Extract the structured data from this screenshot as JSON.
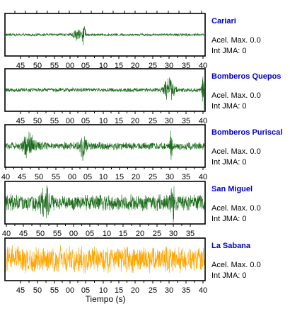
{
  "chart_data": {
    "type": "line",
    "xlabel": "Tiempo (s)",
    "acel_label": "Acel. Max.",
    "int_label": "Int JMA:",
    "panels": [
      {
        "station": "Cariari",
        "acel_max": "0.0",
        "int_jma": "0",
        "trace_color": "#1a6b1a",
        "name_color": "#0000cc",
        "tick_labels": [
          "45",
          "50",
          "55",
          "00",
          "05",
          "10",
          "15",
          "20",
          "25",
          "30",
          "35",
          "40"
        ],
        "noise_level": 0.08,
        "events": [
          {
            "at": 0.395,
            "amp": 1.0,
            "width": 0.006
          },
          {
            "at": 0.36,
            "amp": 0.25,
            "width": 0.02
          }
        ]
      },
      {
        "station": "Bomberos Quepos",
        "acel_max": "0.0",
        "int_jma": "0",
        "trace_color": "#1a6b1a",
        "name_color": "#0000cc",
        "tick_labels": [
          "45",
          "50",
          "55",
          "00",
          "05",
          "10",
          "15",
          "20",
          "25",
          "30",
          "35",
          "40"
        ],
        "noise_level": 0.12,
        "events": [
          {
            "at": 0.82,
            "amp": 0.55,
            "width": 0.025
          },
          {
            "at": 0.995,
            "amp": 1.0,
            "width": 0.01
          }
        ]
      },
      {
        "station": "Bomberos Puriscal",
        "acel_max": "0.0",
        "int_jma": "0",
        "trace_color": "#1a6b1a",
        "name_color": "#0000cc",
        "tick_labels": [
          "40",
          "45",
          "50",
          "55",
          "00",
          "05",
          "10",
          "15",
          "20",
          "25",
          "30",
          "35",
          "40"
        ],
        "noise_level": 0.22,
        "events": [
          {
            "at": 0.12,
            "amp": 0.55,
            "width": 0.03
          },
          {
            "at": 0.39,
            "amp": 0.55,
            "width": 0.015
          },
          {
            "at": 0.83,
            "amp": 1.0,
            "width": 0.005
          }
        ]
      },
      {
        "station": "San Miguel",
        "acel_max": "0.0",
        "int_jma": "0",
        "trace_color": "#1a6b1a",
        "name_color": "#0000cc",
        "tick_labels": [
          "40",
          "45",
          "50",
          "55",
          "00",
          "05",
          "10",
          "15",
          "20",
          "25",
          "30",
          "35"
        ],
        "noise_level": 0.45,
        "events": [
          {
            "at": 0.84,
            "amp": 0.9,
            "width": 0.01
          },
          {
            "at": 0.2,
            "amp": 0.6,
            "width": 0.02
          }
        ]
      },
      {
        "station": "La Sabana",
        "acel_max": "0.0",
        "int_jma": "0",
        "trace_color": "#ffa500",
        "name_color": "#0000cc",
        "tick_labels": [
          "45",
          "50",
          "55",
          "00",
          "05",
          "10",
          "15",
          "20",
          "25",
          "30",
          "35",
          "40"
        ],
        "noise_level": 0.75,
        "events": []
      }
    ]
  }
}
